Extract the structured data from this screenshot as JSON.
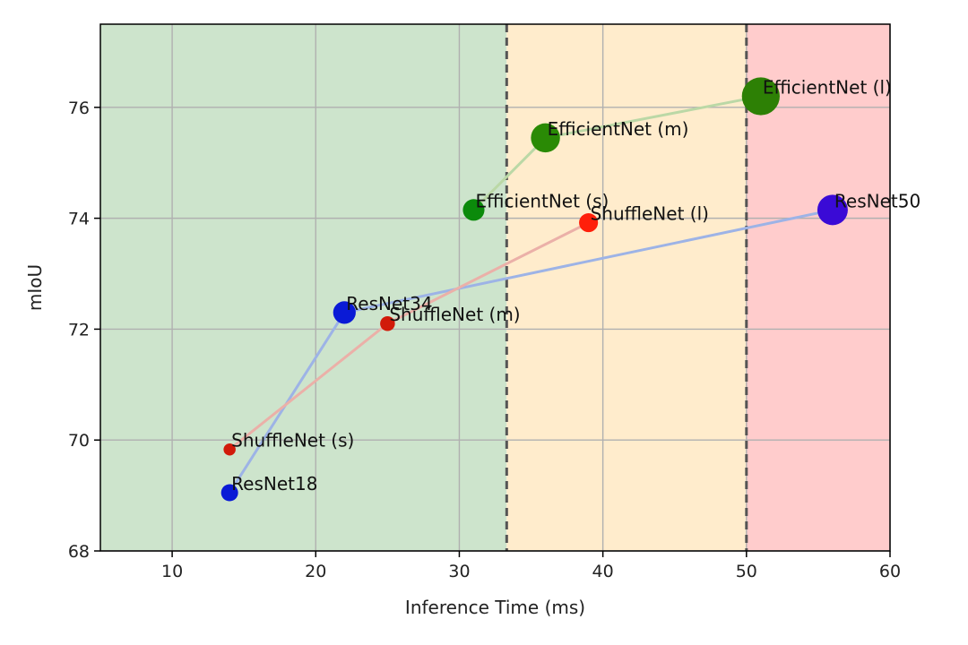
{
  "chart_data": {
    "type": "scatter",
    "xlabel": "Inference Time (ms)",
    "ylabel": "mIoU",
    "xlim": [
      5,
      60
    ],
    "ylim": [
      68,
      77.5
    ],
    "x_ticks": [
      10,
      20,
      30,
      40,
      50,
      60
    ],
    "y_ticks": [
      68,
      70,
      72,
      74,
      76
    ],
    "grid": true,
    "regions": [
      {
        "x_from": 5,
        "x_to": 33.3,
        "color": "#cde4cc"
      },
      {
        "x_from": 33.3,
        "x_to": 50,
        "color": "#ffeccc"
      },
      {
        "x_from": 50,
        "x_to": 60,
        "color": "#ffcccc"
      }
    ],
    "threshold_lines_x": [
      33.3,
      50
    ],
    "series": [
      {
        "line_color": "#9db3e6",
        "points": [
          {
            "label": "ResNet18",
            "x": 14,
            "y": 69.05,
            "size": 1,
            "color": "#0a1ad6"
          },
          {
            "label": "ResNet34",
            "x": 22,
            "y": 72.3,
            "size": 2,
            "color": "#0a1ad6"
          },
          {
            "label": "ResNet50",
            "x": 56,
            "y": 74.15,
            "size": 4,
            "color": "#3a0ad6"
          }
        ]
      },
      {
        "line_color": "#ebb0a8",
        "points": [
          {
            "label": "ShuffleNet (s)",
            "x": 14,
            "y": 69.83,
            "size": 0.4,
            "color": "#d11a0a"
          },
          {
            "label": "ShuffleNet (m)",
            "x": 25,
            "y": 72.1,
            "size": 0.7,
            "color": "#d11a0a"
          },
          {
            "label": "ShuffleNet (l)",
            "x": 39,
            "y": 73.92,
            "size": 1.3,
            "color": "#ff1f0a"
          }
        ]
      },
      {
        "line_color": "#bbd8a6",
        "points": [
          {
            "label": "EfficientNet (s)",
            "x": 31,
            "y": 74.15,
            "size": 1.8,
            "color": "#0b8a0b"
          },
          {
            "label": "EfficientNet (m)",
            "x": 36,
            "y": 75.45,
            "size": 3.6,
            "color": "#2a8a05"
          },
          {
            "label": "EfficientNet (l)",
            "x": 51,
            "y": 76.2,
            "size": 6.5,
            "color": "#2d8005"
          }
        ]
      }
    ]
  }
}
